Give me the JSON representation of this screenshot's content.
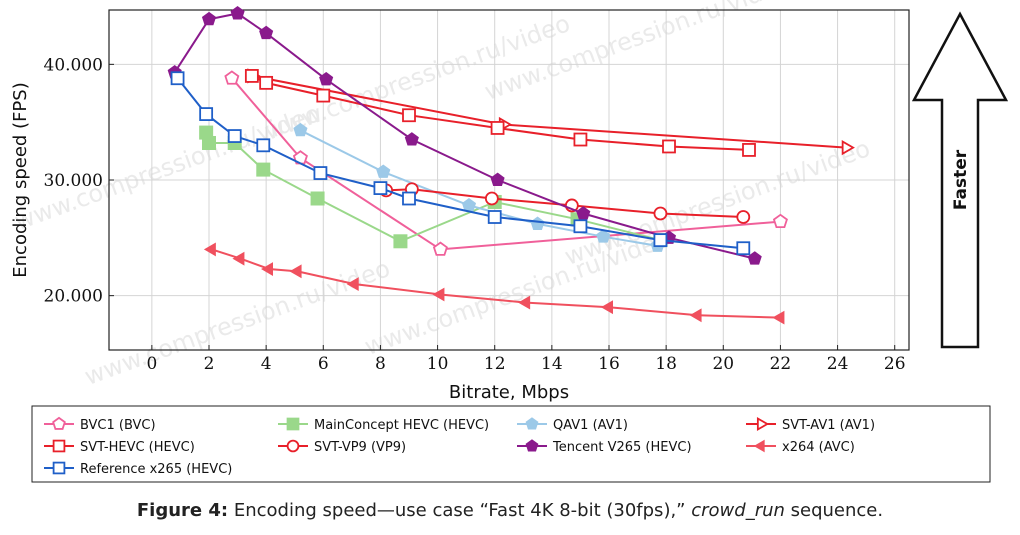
{
  "caption": {
    "label": "Figure 4:",
    "text_before": " Encoding speed—use case “Fast 4K 8-bit (30fps),” ",
    "italic": "crowd_run",
    "text_after": " sequence."
  },
  "watermark": "www.compression.ru/video",
  "faster_label": "Faster",
  "chart_data": {
    "type": "line",
    "xlabel": "Bitrate, Mbps",
    "ylabel": "Encoding speed (FPS)",
    "xlim": [
      -1.5,
      26.5
    ],
    "ylim": [
      15.3,
      44.7
    ],
    "xticks": [
      0,
      2,
      4,
      6,
      8,
      10,
      12,
      14,
      16,
      18,
      20,
      22,
      24,
      26
    ],
    "xtick_labels": [
      "0",
      "2",
      "4",
      "6",
      "8",
      "10",
      "12",
      "14",
      "16",
      "18",
      "20",
      "22",
      "24",
      "26"
    ],
    "yticks": [
      20,
      30,
      40
    ],
    "ytick_labels": [
      "20.000",
      "30.000",
      "40.000"
    ],
    "grid": true,
    "legend_position": "bottom",
    "series": [
      {
        "name": "BVC1 (BVC)",
        "color": "#f0609a",
        "marker": "pentagon-open",
        "x": [
          2.8,
          5.2,
          10.1,
          22.0
        ],
        "y": [
          38.8,
          31.9,
          24.0,
          26.4
        ]
      },
      {
        "name": "MainConcept HEVC (HEVC)",
        "color": "#9ad88a",
        "marker": "square-filled",
        "x": [
          1.9,
          2.0,
          2.9,
          3.9,
          5.8,
          8.7,
          12.0,
          14.9,
          17.8
        ],
        "y": [
          34.1,
          33.2,
          33.2,
          30.9,
          28.4,
          24.7,
          28.1,
          26.6,
          24.8
        ]
      },
      {
        "name": "QAV1 (AV1)",
        "color": "#9cc9e8",
        "marker": "pentagon-filled",
        "x": [
          5.2,
          8.1,
          11.1,
          13.5,
          15.8,
          17.7
        ],
        "y": [
          34.3,
          30.7,
          27.8,
          26.2,
          25.1,
          24.3
        ]
      },
      {
        "name": "SVT-AV1 (AV1)",
        "color": "#e8202a",
        "marker": "triangle-right-open",
        "x": [
          3.5,
          12.3,
          24.3
        ],
        "y": [
          39.0,
          34.8,
          32.8
        ]
      },
      {
        "name": "SVT-HEVC (HEVC)",
        "color": "#e8202a",
        "marker": "square-open",
        "x": [
          3.5,
          4.0,
          6.0,
          9.0,
          12.1,
          15.0,
          18.1,
          20.9
        ],
        "y": [
          39.0,
          38.4,
          37.3,
          35.6,
          34.5,
          33.5,
          32.9,
          32.6
        ]
      },
      {
        "name": "SVT-VP9 (VP9)",
        "color": "#e8202a",
        "marker": "circle-open",
        "x": [
          8.2,
          9.1,
          11.9,
          14.7,
          17.8,
          20.7
        ],
        "y": [
          29.1,
          29.2,
          28.4,
          27.8,
          27.1,
          26.8
        ]
      },
      {
        "name": "Tencent V265 (HEVC)",
        "color": "#8a1a8c",
        "marker": "pentagon-filled",
        "x": [
          0.8,
          2.0,
          3.0,
          4.0,
          6.1,
          9.1,
          12.1,
          15.1,
          18.1,
          21.1
        ],
        "y": [
          39.3,
          43.9,
          44.4,
          42.7,
          38.7,
          33.5,
          30.0,
          27.1,
          25.0,
          23.2
        ]
      },
      {
        "name": "x264 (AVC)",
        "color": "#f0505e",
        "marker": "triangle-left-filled",
        "x": [
          2.1,
          3.1,
          4.1,
          5.1,
          7.1,
          10.1,
          13.1,
          16.0,
          19.1,
          22.0
        ],
        "y": [
          24.0,
          23.2,
          22.3,
          22.1,
          21.0,
          20.1,
          19.4,
          19.0,
          18.3,
          18.1
        ]
      },
      {
        "name": "Reference x265 (HEVC)",
        "color": "#1f5fc8",
        "marker": "square-open",
        "x": [
          0.9,
          1.9,
          2.9,
          3.9,
          5.9,
          8.0,
          9.0,
          12.0,
          15.0,
          17.8,
          20.7
        ],
        "y": [
          38.8,
          35.7,
          33.8,
          33.0,
          30.6,
          29.3,
          28.4,
          26.8,
          26.0,
          24.8,
          24.1
        ]
      }
    ]
  }
}
